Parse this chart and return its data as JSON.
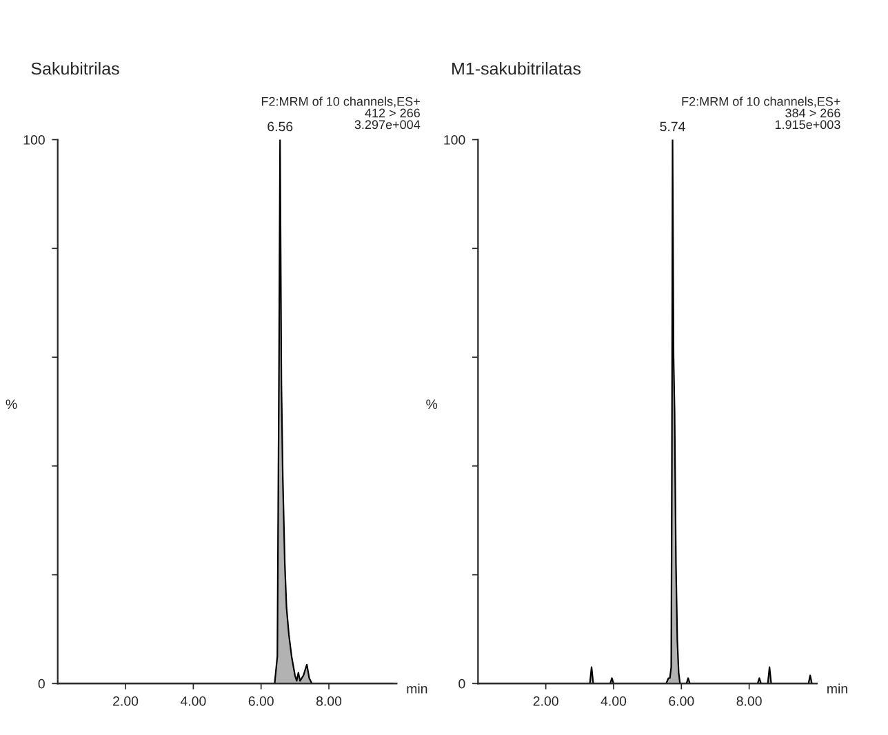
{
  "chart_data": [
    {
      "type": "area",
      "title": "Sakubitrilas",
      "xlabel": "min",
      "ylabel": "%",
      "annotations": [
        "F2:MRM of 10 channels,ES+\n412 > 266\n3.297e+004",
        {
          "text": "6.56",
          "x": 6.56,
          "y": 100
        }
      ],
      "x": [
        0,
        6.4,
        6.48,
        6.53,
        6.56,
        6.6,
        6.64,
        6.7,
        6.75,
        6.82,
        6.9,
        7.0,
        7.05,
        7.1,
        7.15,
        7.25,
        7.35,
        7.42,
        7.5,
        9.9
      ],
      "series": [
        {
          "color": "#555555",
          "values": [
            0,
            0,
            5,
            60,
            100,
            55,
            38,
            22,
            14,
            9,
            5,
            1.5,
            0.5,
            2,
            0.5,
            1.5,
            3.5,
            1,
            0,
            0
          ]
        }
      ],
      "xlim": [
        0,
        10
      ],
      "ylim": [
        0,
        100
      ],
      "xticks": [
        {
          "value": 2,
          "label": "2.00"
        },
        {
          "value": 4,
          "label": "4.00"
        },
        {
          "value": 6,
          "label": "6.00"
        },
        {
          "value": 8,
          "label": "8.00"
        }
      ],
      "yticks": [
        0,
        {
          "value": 20,
          "label": null
        },
        {
          "value": 40,
          "label": null
        },
        {
          "value": 60,
          "label": null
        },
        {
          "value": 80,
          "label": null
        },
        100
      ],
      "grid": false,
      "legend": false
    },
    {
      "type": "area",
      "title": "M1-sakubitrilatas",
      "xlabel": "min",
      "ylabel": "%",
      "annotations": [
        "F2:MRM of 10 channels,ES+\n384 > 266\n1.915e+003",
        {
          "text": "5.74",
          "x": 5.74,
          "y": 100
        }
      ],
      "x": [
        0,
        3.3,
        3.35,
        3.4,
        3.9,
        3.95,
        4.0,
        5.55,
        5.62,
        5.66,
        5.7,
        5.72,
        5.74,
        5.77,
        5.8,
        5.84,
        5.88,
        5.92,
        5.96,
        6.15,
        6.2,
        6.25,
        8.25,
        8.3,
        8.35,
        8.55,
        8.6,
        8.65,
        9.75,
        9.8,
        9.85
      ],
      "series": [
        {
          "color": "#555555",
          "values": [
            0,
            0,
            3,
            0,
            0,
            1,
            0,
            0,
            1,
            1,
            3,
            40,
            100,
            60,
            50,
            22,
            8,
            2,
            0,
            0,
            1,
            0,
            0,
            1,
            0,
            0,
            3,
            0,
            0,
            1.5,
            0
          ]
        }
      ],
      "xlim": [
        0,
        10
      ],
      "ylim": [
        0,
        100
      ],
      "xticks": [
        {
          "value": 2,
          "label": "2.00"
        },
        {
          "value": 4,
          "label": "4.00"
        },
        {
          "value": 6,
          "label": "6.00"
        },
        {
          "value": 8,
          "label": "8.00"
        }
      ],
      "yticks": [
        0,
        {
          "value": 20,
          "label": null
        },
        {
          "value": 40,
          "label": null
        },
        {
          "value": 60,
          "label": null
        },
        {
          "value": 80,
          "label": null
        },
        100
      ],
      "grid": false,
      "legend": false
    }
  ]
}
